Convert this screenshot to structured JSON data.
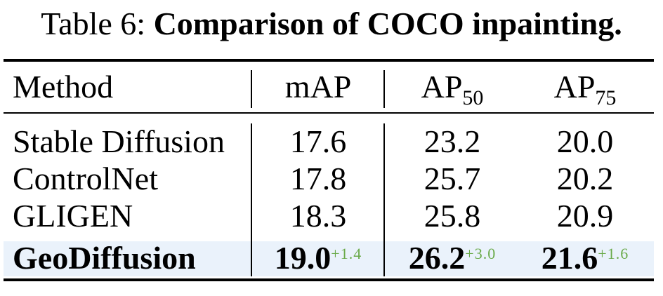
{
  "caption": {
    "label": "Table 6:",
    "title": "Comparison of COCO inpainting."
  },
  "header": {
    "method": "Method",
    "map": "mAP",
    "ap50_base": "AP",
    "ap50_sub": "50",
    "ap75_base": "AP",
    "ap75_sub": "75"
  },
  "rows": [
    {
      "method": "Stable Diffusion",
      "map": "17.6",
      "ap50": "23.2",
      "ap75": "20.0"
    },
    {
      "method": "ControlNet",
      "map": "17.8",
      "ap50": "25.7",
      "ap75": "20.2"
    },
    {
      "method": "GLIGEN",
      "map": "18.3",
      "ap50": "25.8",
      "ap75": "20.9"
    },
    {
      "method": "GeoDiffusion",
      "map": "19.0",
      "map_gain": "+1.4",
      "ap50": "26.2",
      "ap50_gain": "+3.0",
      "ap75": "21.6",
      "ap75_gain": "+1.6"
    }
  ],
  "colors": {
    "highlight_row": "#eaf2fb",
    "gain_text": "#6aaa4a"
  }
}
